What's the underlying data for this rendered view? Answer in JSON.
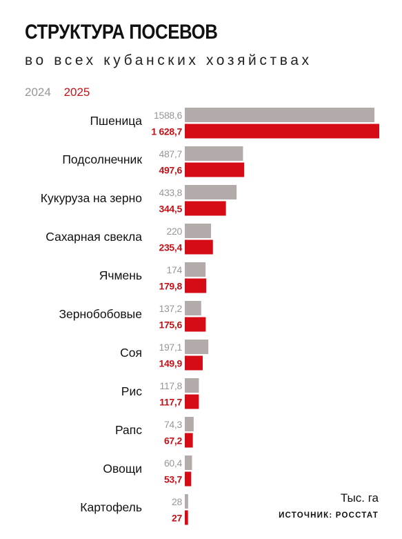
{
  "header": {
    "title": "СТРУКТУРА ПОСЕВОВ",
    "subtitle": "во всех кубанских хозяйствах"
  },
  "footer": {
    "unit": "Тыс. га",
    "source": "ИСТОЧНИК: РОССТАТ"
  },
  "colors": {
    "series_2024": "#b3abaa",
    "series_2025": "#d50b15",
    "label_2024": "#9a9595",
    "label_2025": "#c41017",
    "text": "#111111"
  },
  "chart_data": {
    "type": "bar",
    "orientation": "horizontal",
    "categories": [
      "Пшеница",
      "Подсолнечник",
      "Кукуруза на зерно",
      "Сахарная свекла",
      "Ячмень",
      "Зернобобовые",
      "Соя",
      "Рис",
      "Рапс",
      "Овощи",
      "Картофель"
    ],
    "series": [
      {
        "name": "2024",
        "values": [
          1588.6,
          487.7,
          433.8,
          220,
          174,
          137.2,
          197.1,
          117.8,
          74.3,
          60.4,
          28
        ],
        "labels": [
          "1588,6",
          "487,7",
          "433,8",
          "220",
          "174",
          "137,2",
          "197,1",
          "117,8",
          "74,3",
          "60,4",
          "28"
        ]
      },
      {
        "name": "2025",
        "values": [
          1628.7,
          497.6,
          344.5,
          235.4,
          179.8,
          175.6,
          149.9,
          117.7,
          67.2,
          53.7,
          27
        ],
        "labels": [
          "1 628,7",
          "497,6",
          "344,5",
          "235,4",
          "179,8",
          "175,6",
          "149,9",
          "117,7",
          "67,2",
          "53,7",
          "27"
        ]
      }
    ],
    "legend_position": "top-left",
    "grid": false
  }
}
